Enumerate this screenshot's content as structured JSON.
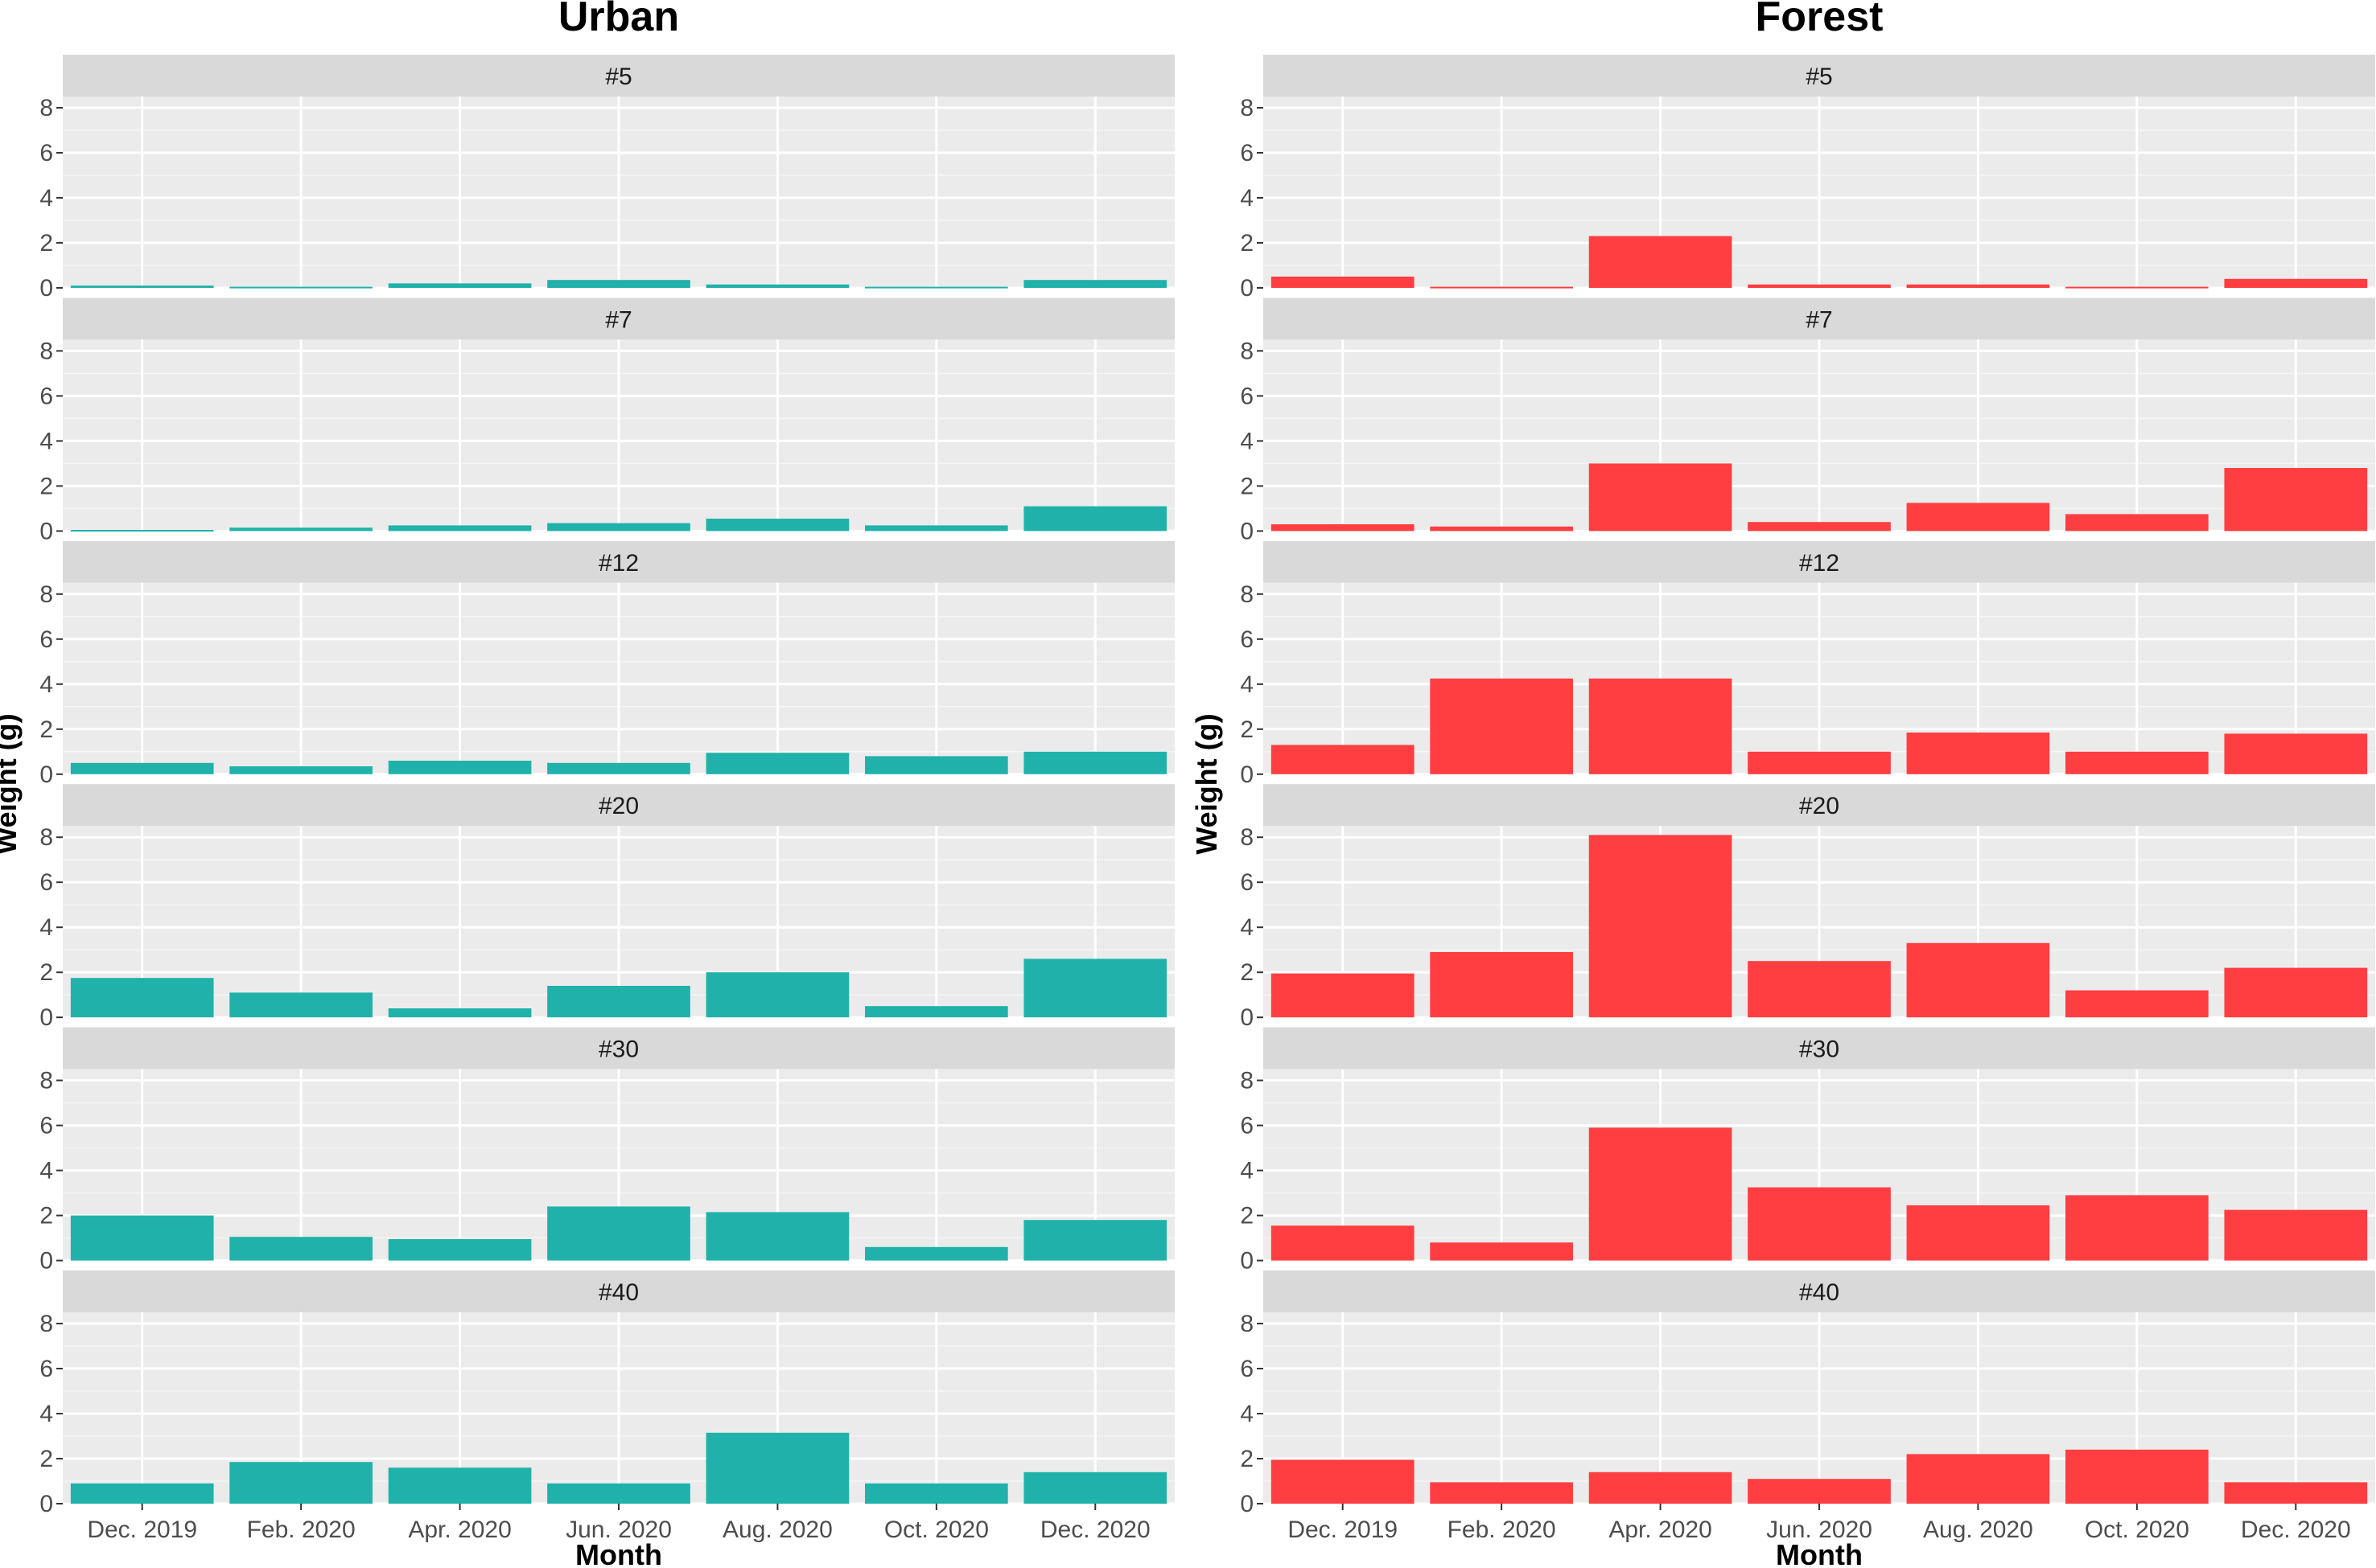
{
  "chart_data": [
    {
      "type": "bar",
      "title": "Urban",
      "xlabel": "Month",
      "ylabel": "Weight (g)",
      "ylim": [
        0,
        8.5
      ],
      "yticks": [
        0,
        2,
        4,
        6,
        8
      ],
      "categories": [
        "Dec. 2019",
        "Feb. 2020",
        "Apr. 2020",
        "Jun. 2020",
        "Aug. 2020",
        "Oct. 2020",
        "Dec. 2020"
      ],
      "color": "#20B2AA",
      "grid": true,
      "facets": [
        {
          "label": "#5",
          "values": [
            0.1,
            0.05,
            0.2,
            0.35,
            0.15,
            0.05,
            0.35
          ]
        },
        {
          "label": "#7",
          "values": [
            0.05,
            0.15,
            0.25,
            0.35,
            0.55,
            0.25,
            1.1
          ]
        },
        {
          "label": "#12",
          "values": [
            0.5,
            0.35,
            0.6,
            0.5,
            0.95,
            0.8,
            1.0
          ]
        },
        {
          "label": "#20",
          "values": [
            1.75,
            1.1,
            0.4,
            1.4,
            2.0,
            0.5,
            2.6
          ]
        },
        {
          "label": "#30",
          "values": [
            2.0,
            1.05,
            0.95,
            2.4,
            2.15,
            0.6,
            1.8
          ]
        },
        {
          "label": "#40",
          "values": [
            0.9,
            1.85,
            1.6,
            0.9,
            3.15,
            0.9,
            1.4
          ]
        }
      ]
    },
    {
      "type": "bar",
      "title": "Forest",
      "xlabel": "Month",
      "ylabel": "Weight (g)",
      "ylim": [
        0,
        8.5
      ],
      "yticks": [
        0,
        2,
        4,
        6,
        8
      ],
      "categories": [
        "Dec. 2019",
        "Feb. 2020",
        "Apr. 2020",
        "Jun. 2020",
        "Aug. 2020",
        "Oct. 2020",
        "Dec. 2020"
      ],
      "color": "#FF3E41",
      "grid": true,
      "facets": [
        {
          "label": "#5",
          "values": [
            0.5,
            0.05,
            2.3,
            0.15,
            0.15,
            0.05,
            0.4
          ]
        },
        {
          "label": "#7",
          "values": [
            0.3,
            0.2,
            3.0,
            0.4,
            1.25,
            0.75,
            2.8
          ]
        },
        {
          "label": "#12",
          "values": [
            1.3,
            4.25,
            4.25,
            1.0,
            1.85,
            1.0,
            1.8
          ]
        },
        {
          "label": "#20",
          "values": [
            1.95,
            2.9,
            8.1,
            2.5,
            3.3,
            1.2,
            2.2
          ]
        },
        {
          "label": "#30",
          "values": [
            1.55,
            0.8,
            5.9,
            3.25,
            2.45,
            2.9,
            2.25
          ]
        },
        {
          "label": "#40",
          "values": [
            1.95,
            0.95,
            1.4,
            1.1,
            2.2,
            2.4,
            0.95
          ]
        }
      ]
    }
  ]
}
